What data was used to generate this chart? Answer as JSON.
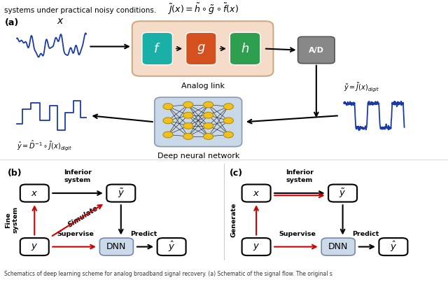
{
  "fig_width": 6.4,
  "fig_height": 4.03,
  "bg_color": "#ffffff",
  "header_text": "systems under practical noisy conditions.",
  "panel_a_label": "(a)",
  "panel_b_label": "(b)",
  "panel_c_label": "(c)",
  "formula": "$\\tilde{J}(x) = \\tilde{h} \\circ \\tilde{g} \\circ \\tilde{f}(x)$",
  "analog_link_label": "Analog link",
  "dnn_label": "Deep neural network",
  "analog_bg": "#f5dcc8",
  "f_color": "#1ab0a8",
  "g_color": "#d4501e",
  "h_color": "#2e9e4f",
  "ad_color": "#888888",
  "dnn_bg": "#c8d8e8",
  "box_color": "#ccd9e8",
  "signal_color": "#1a3aaa",
  "red_arrow": "#cc0000",
  "black_arrow": "#000000",
  "footer_text": "Schematics of deep learning scheme for analog broadband signal recovery. (a) Schematic of the signal flow. The original s",
  "inferior_system": "Inferior\nsystem",
  "fine_system": "Fine\nsystem",
  "generate_label": "Generate",
  "supervise_label": "Supervise",
  "predict_label": "Predict",
  "simulate_label": "Simulate",
  "x_label": "$x$",
  "y_label": "$y$",
  "ytilde_label": "$\\tilde{y}$",
  "yhat_label": "$\\hat{y}$"
}
